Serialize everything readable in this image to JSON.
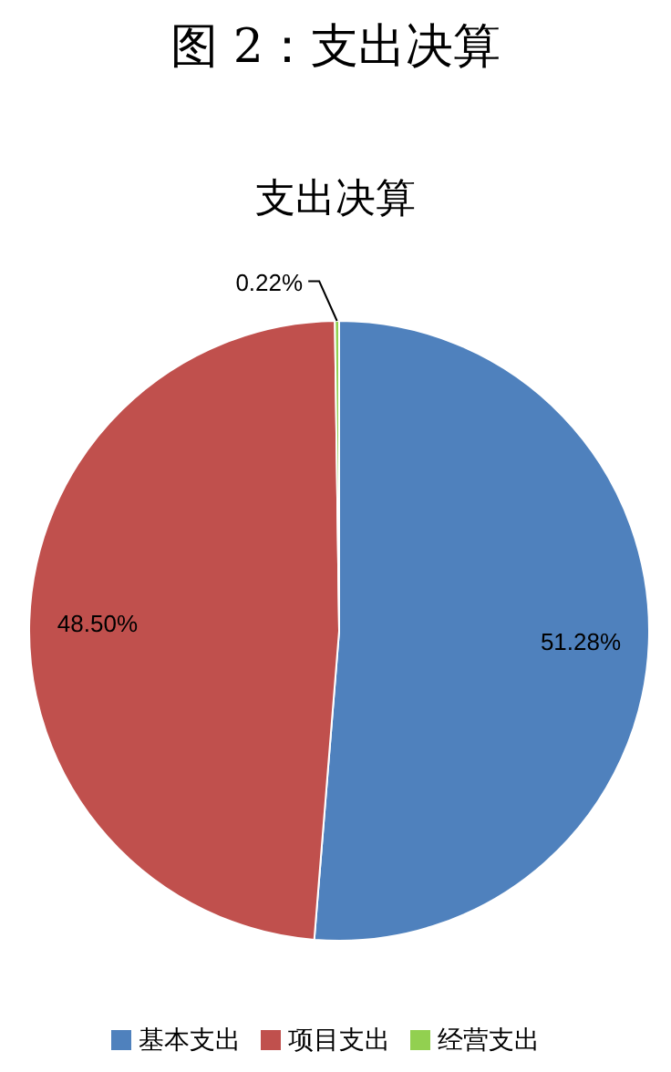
{
  "chart_data": {
    "type": "pie",
    "title": "图 2：支出决算",
    "subtitle": "支出决算",
    "categories": [
      "基本支出",
      "项目支出",
      "经营支出"
    ],
    "values": [
      51.28,
      48.5,
      0.22
    ],
    "colors": [
      "#4f81bd",
      "#c0504d",
      "#92d050"
    ],
    "value_labels": [
      "51.28%",
      "48.50%",
      "0.22%"
    ],
    "legend": "bottom"
  }
}
